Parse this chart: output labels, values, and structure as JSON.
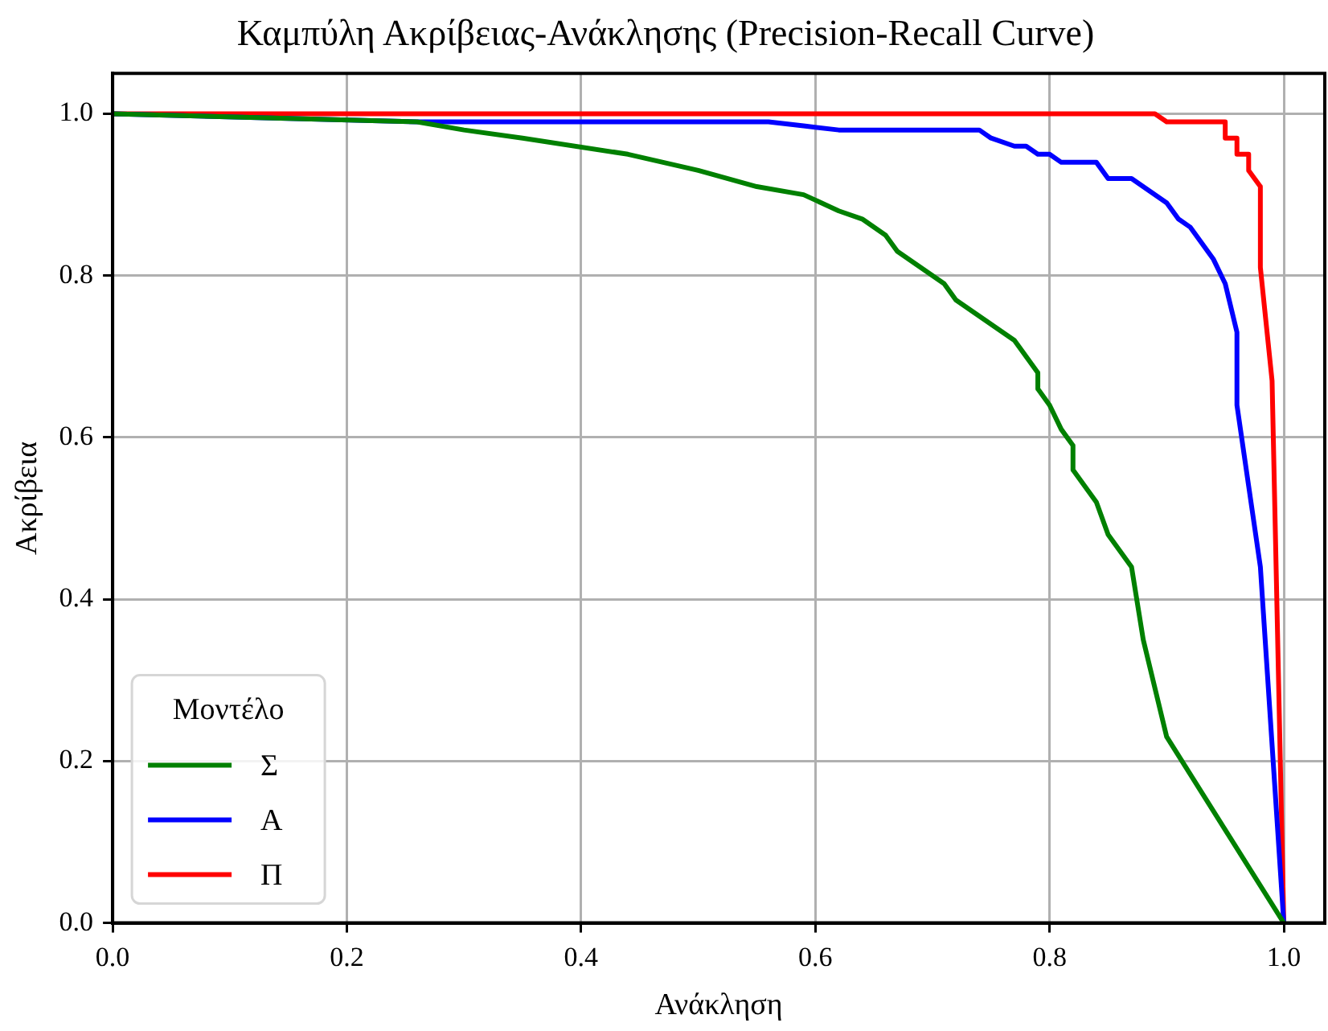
{
  "chart_data": {
    "type": "line",
    "title": "Καμπύλη Ακρίβειας-Ανάκλησης (Precision-Recall Curve)",
    "xlabel": "Ανάκληση",
    "ylabel": "Ακρίβεια",
    "legend_title": "Μοντέλο",
    "legend": "bottom left",
    "grid": true,
    "marker": "none",
    "line_style": "solid",
    "xlim": [
      0,
      1.035
    ],
    "ylim": [
      0,
      1.05
    ],
    "xticks": [
      {
        "value": 0,
        "label": "0.0"
      },
      {
        "value": 0.2,
        "label": "0.2"
      },
      {
        "value": 0.4,
        "label": "0.4"
      },
      {
        "value": 0.6,
        "label": "0.6"
      },
      {
        "value": 0.8,
        "label": "0.8"
      },
      {
        "value": 1,
        "label": "1.0"
      }
    ],
    "yticks": [
      {
        "value": 0,
        "label": "0.0"
      },
      {
        "value": 0.2,
        "label": "0.2"
      },
      {
        "value": 0.4,
        "label": "0.4"
      },
      {
        "value": 0.6,
        "label": "0.6"
      },
      {
        "value": 0.8,
        "label": "0.8"
      },
      {
        "value": 1,
        "label": "1.0"
      }
    ],
    "series": [
      {
        "name": "Σ",
        "color": "#008000",
        "x": [
          0,
          0.26,
          0.3,
          0.35,
          0.44,
          0.5,
          0.55,
          0.59,
          0.62,
          0.64,
          0.66,
          0.67,
          0.71,
          0.72,
          0.77,
          0.79,
          0.79,
          0.8,
          0.81,
          0.82,
          0.82,
          0.84,
          0.85,
          0.87,
          0.88,
          0.9,
          1.0
        ],
        "values": [
          1.0,
          0.99,
          0.98,
          0.97,
          0.95,
          0.93,
          0.91,
          0.9,
          0.88,
          0.87,
          0.85,
          0.83,
          0.79,
          0.77,
          0.72,
          0.68,
          0.66,
          0.64,
          0.61,
          0.59,
          0.56,
          0.52,
          0.48,
          0.44,
          0.35,
          0.23,
          0.0
        ]
      },
      {
        "name": "Α",
        "color": "#0000ff",
        "x": [
          0,
          0.26,
          0.56,
          0.59,
          0.62,
          0.74,
          0.75,
          0.77,
          0.78,
          0.79,
          0.8,
          0.81,
          0.84,
          0.85,
          0.87,
          0.9,
          0.91,
          0.92,
          0.94,
          0.95,
          0.96,
          0.96,
          0.97,
          0.98,
          1.0
        ],
        "values": [
          1.0,
          0.99,
          0.99,
          0.985,
          0.98,
          0.98,
          0.97,
          0.96,
          0.96,
          0.95,
          0.95,
          0.94,
          0.94,
          0.92,
          0.92,
          0.89,
          0.87,
          0.86,
          0.82,
          0.79,
          0.73,
          0.64,
          0.54,
          0.44,
          0.0
        ]
      },
      {
        "name": "Π",
        "color": "#ff0000",
        "x": [
          0,
          0.89,
          0.9,
          0.95,
          0.95,
          0.96,
          0.96,
          0.97,
          0.97,
          0.98,
          0.98,
          0.99,
          1.0
        ],
        "values": [
          1.0,
          1.0,
          0.99,
          0.99,
          0.97,
          0.97,
          0.95,
          0.95,
          0.93,
          0.91,
          0.81,
          0.67,
          0.0
        ]
      }
    ]
  }
}
